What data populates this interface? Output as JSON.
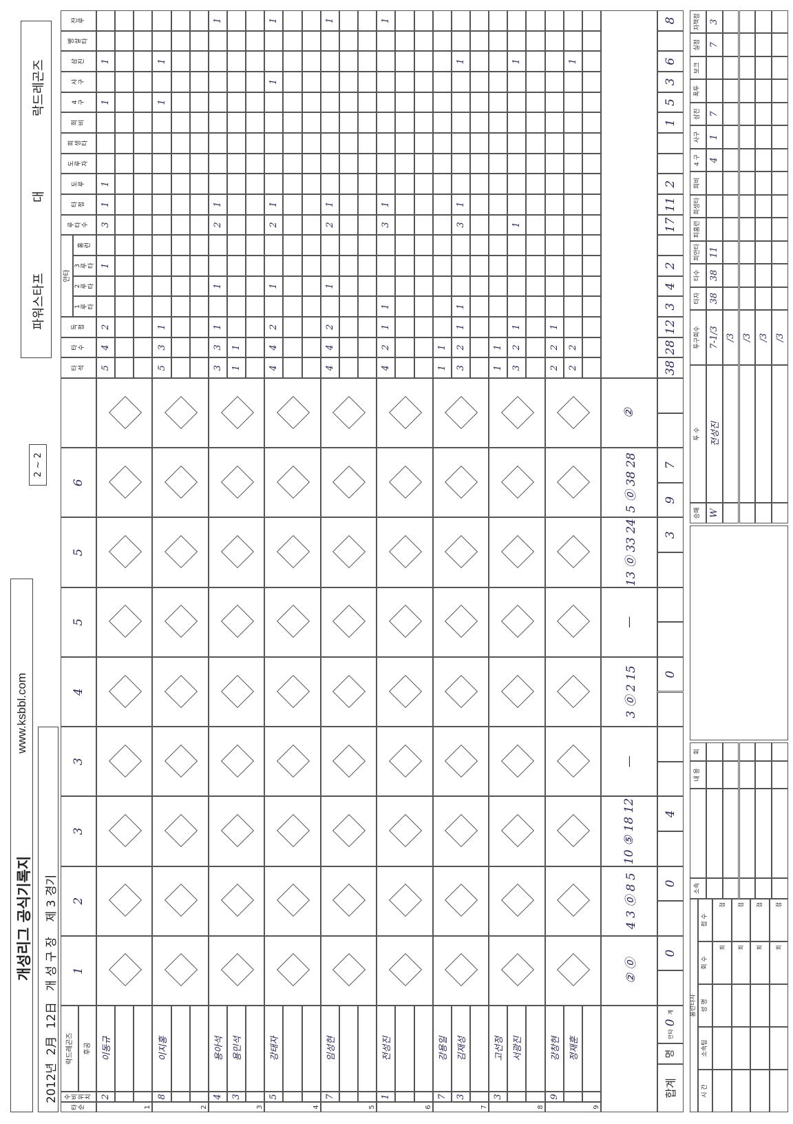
{
  "header": {
    "title": "개성리그 공식기록지",
    "url": "www.ksbbl.com",
    "date_line": "2012년  2月  12日   개 성 구 장    제 3 경기",
    "game_box": "2 ~ 2",
    "away_team": "파워스타프",
    "versus": "대",
    "home_team": "락드레곤즈"
  },
  "grid": {
    "team_label": "락드레곤즈",
    "batting_side": "후공",
    "order_label": "타순",
    "position_label": "수비위치",
    "innings": [
      "1",
      "2",
      "3",
      "3",
      "4",
      "5",
      "5",
      "6",
      ""
    ],
    "stat_headers": [
      "타\n석",
      "타\n수",
      "득\n점",
      "1\n루\n타",
      "2\n루\n타",
      "3\n루\n타",
      "홈\n런",
      "루\n타\n수",
      "타\n점",
      "도\n루",
      "도\n루\n자",
      "희\n생\n타",
      "희\n비",
      "4\n구",
      "사\n구",
      "삼\n진",
      "병\n살\n타",
      "잔\n루"
    ],
    "hit_group_label": "안타",
    "batters": [
      {
        "order": "1",
        "entries": [
          {
            "pos": "2",
            "name": "이동규",
            "stats": [
              "5",
              "4",
              "2",
              "",
              "",
              "1",
              "",
              "3",
              "1",
              "1",
              "",
              "",
              "",
              "1",
              "",
              "1",
              "",
              ""
            ]
          },
          {
            "pos": "",
            "name": "",
            "stats": []
          },
          {
            "pos": "",
            "name": "",
            "stats": []
          }
        ]
      },
      {
        "order": "2",
        "entries": [
          {
            "pos": "8",
            "name": "이지홍",
            "stats": [
              "5",
              "3",
              "1",
              "",
              "",
              "",
              "",
              "",
              "",
              "",
              "",
              "",
              "",
              "1",
              "",
              "1",
              "",
              ""
            ]
          },
          {
            "pos": "",
            "name": "",
            "stats": []
          },
          {
            "pos": "",
            "name": "",
            "stats": []
          }
        ]
      },
      {
        "order": "3",
        "entries": [
          {
            "pos": "4",
            "name": "용아석",
            "stats": [
              "3",
              "3",
              "1",
              "",
              "1",
              "",
              "",
              "2",
              "1",
              "",
              "",
              "",
              "",
              "",
              "",
              "",
              "",
              "1"
            ]
          },
          {
            "pos": "3",
            "name": "용민석",
            "stats": [
              "1",
              "1",
              "",
              "",
              "",
              "",
              "",
              "",
              "",
              "",
              "",
              "",
              "",
              "",
              "",
              "",
              "",
              ""
            ]
          },
          {
            "pos": "",
            "name": "",
            "stats": []
          }
        ]
      },
      {
        "order": "4",
        "entries": [
          {
            "pos": "5",
            "name": "강태자",
            "stats": [
              "4",
              "4",
              "2",
              "",
              "1",
              "",
              "",
              "2",
              "1",
              "",
              "",
              "",
              "",
              "",
              "1",
              "",
              "",
              "1"
            ]
          },
          {
            "pos": "",
            "name": "",
            "stats": []
          },
          {
            "pos": "",
            "name": "",
            "stats": []
          }
        ]
      },
      {
        "order": "5",
        "entries": [
          {
            "pos": "7",
            "name": "임성현",
            "stats": [
              "4",
              "4",
              "2",
              "",
              "1",
              "",
              "",
              "2",
              "1",
              "",
              "",
              "",
              "",
              "",
              "",
              "",
              "",
              "1"
            ]
          },
          {
            "pos": "",
            "name": "",
            "stats": []
          },
          {
            "pos": "",
            "name": "",
            "stats": []
          }
        ]
      },
      {
        "order": "6",
        "entries": [
          {
            "pos": "1",
            "name": "전성진",
            "stats": [
              "4",
              "2",
              "1",
              "1",
              "",
              "",
              "",
              "3",
              "1",
              "",
              "",
              "",
              "",
              "",
              "",
              "",
              "",
              "1"
            ]
          },
          {
            "pos": "",
            "name": "",
            "stats": []
          },
          {
            "pos": "",
            "name": "",
            "stats": []
          }
        ]
      },
      {
        "order": "7",
        "entries": [
          {
            "pos": "7",
            "name": "강용일",
            "stats": [
              "1",
              "1",
              "",
              "",
              "",
              "",
              "",
              "",
              "",
              "",
              "",
              "",
              "",
              "",
              "",
              "",
              "",
              ""
            ]
          },
          {
            "pos": "3",
            "name": "김재성",
            "stats": [
              "3",
              "2",
              "1",
              "1",
              "",
              "",
              "",
              "3",
              "1",
              "",
              "",
              "",
              "",
              "",
              "",
              "1",
              "",
              ""
            ]
          },
          {
            "pos": "",
            "name": "",
            "stats": []
          }
        ]
      },
      {
        "order": "8",
        "entries": [
          {
            "pos": "3",
            "name": "고선정",
            "stats": [
              "1",
              "1",
              "",
              "",
              "",
              "",
              "",
              "",
              "",
              "",
              "",
              "",
              "",
              "",
              "",
              "",
              "",
              ""
            ]
          },
          {
            "pos": "",
            "name": "서광진",
            "stats": [
              "3",
              "2",
              "1",
              "",
              "",
              "",
              "",
              "1",
              "",
              "",
              "",
              "",
              "",
              "",
              "",
              "1",
              "",
              ""
            ]
          },
          {
            "pos": "",
            "name": "",
            "stats": []
          }
        ]
      },
      {
        "order": "9",
        "entries": [
          {
            "pos": "9",
            "name": "강창현",
            "stats": [
              "2",
              "2",
              "1",
              "",
              "",
              "",
              "",
              "",
              "",
              "",
              "",
              "",
              "",
              "",
              "",
              "",
              "",
              ""
            ]
          },
          {
            "pos": "",
            "name": "정재훈",
            "stats": [
              "2",
              "2",
              "",
              "",
              "",
              "",
              "",
              "",
              "",
              "",
              "",
              "",
              "",
              "",
              "",
              "1",
              "",
              ""
            ]
          },
          {
            "pos": "",
            "name": "",
            "stats": []
          }
        ]
      }
    ],
    "summary_notes": [
      "②  ⓪",
      "4 3 ⓪ 8 5",
      "10 ⑤ 18 12",
      "—",
      "3 ⓪ 2 15",
      "—",
      "13 ⓪ 33 24",
      "5 ⓪ 38 28",
      "②"
    ],
    "hits_label": "안타",
    "total_label": "계",
    "people_label": "명",
    "totals_label": "합계",
    "hits_value": "0",
    "inning_bottom": [
      [
        "",
        "0"
      ],
      [
        "",
        "0"
      ],
      [
        "",
        "4"
      ],
      [
        "",
        ""
      ],
      [
        "",
        "0"
      ],
      [
        "",
        ""
      ],
      [
        "",
        "3"
      ],
      [
        "9",
        "7"
      ],
      [
        "",
        ""
      ]
    ],
    "totals": [
      "38",
      "28",
      "12",
      "3",
      "4",
      "2",
      "",
      "17",
      "11",
      "2",
      "",
      "",
      "1",
      "5",
      "3",
      "6",
      "",
      "8"
    ]
  },
  "pitchers": {
    "headers": [
      "승패",
      "투 수",
      "투구회수",
      "타자",
      "타수",
      "피안타",
      "피홈런",
      "희생타",
      "희비",
      "4 구",
      "사구",
      "삼진",
      "폭투",
      "보크",
      "실점",
      "자책점"
    ],
    "rows": [
      [
        "W",
        "전성진",
        "7-1/3",
        "38",
        "38",
        "11",
        "",
        "",
        "",
        "4",
        "1",
        "7",
        "",
        "",
        "7",
        "3"
      ],
      [
        "",
        "",
        "/3",
        "",
        "",
        "",
        "",
        "",
        "",
        "",
        "",
        "",
        "",
        "",
        "",
        ""
      ],
      [
        "",
        "",
        "/3",
        "",
        "",
        "",
        "",
        "",
        "",
        "",
        "",
        "",
        "",
        "",
        "",
        ""
      ],
      [
        "",
        "",
        "/3",
        "",
        "",
        "",
        "",
        "",
        "",
        "",
        "",
        "",
        "",
        "",
        "",
        ""
      ],
      [
        "",
        "",
        "/3",
        "",
        "",
        "",
        "",
        "",
        "",
        "",
        "",
        "",
        "",
        "",
        "",
        ""
      ]
    ]
  },
  "notes_table": {
    "headers": [
      "소속",
      "",
      "내 용",
      "회"
    ]
  },
  "homerun_table": {
    "title": "홈런타자",
    "headers": [
      "시 간",
      "소속팀",
      "성 명",
      "회 수",
      "점 수"
    ],
    "inning_suffix": "회",
    "score_suffix": "점"
  },
  "colors": {
    "ink": "#2a2a55",
    "grid": "#555555"
  }
}
